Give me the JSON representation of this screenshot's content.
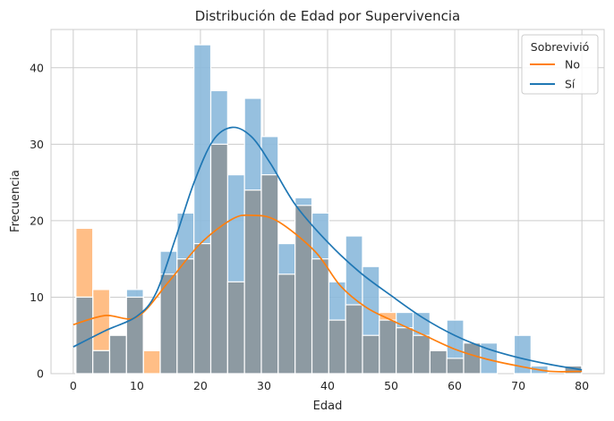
{
  "chart_data": {
    "type": "histogram",
    "title": "Distribución de Edad por Supervivencia",
    "xlabel": "Edad",
    "ylabel": "Frecuencia",
    "xlim": [
      -3.5,
      83.5
    ],
    "ylim": [
      0,
      45
    ],
    "xticks": [
      0,
      10,
      20,
      30,
      40,
      50,
      60,
      70,
      80
    ],
    "yticks": [
      0,
      10,
      20,
      30,
      40
    ],
    "grid": true,
    "legend": {
      "title": "Sobrevivió",
      "placement": "top-right"
    },
    "bin_edges": [
      0.42,
      3.07,
      5.72,
      8.37,
      11.02,
      13.68,
      16.33,
      18.98,
      21.63,
      24.28,
      26.93,
      29.58,
      32.23,
      34.89,
      37.54,
      40.19,
      42.84,
      45.49,
      48.14,
      50.79,
      53.45,
      56.1,
      58.75,
      61.4,
      64.05,
      66.7,
      69.35,
      72.0,
      74.66,
      77.31,
      79.96
    ],
    "series": [
      {
        "name": "No",
        "color": "#ff7f0e",
        "bar_color": "#ffbe86",
        "values": [
          19,
          11,
          5,
          10,
          3,
          13,
          15,
          17,
          30,
          12,
          24,
          26,
          13,
          22,
          15,
          7,
          9,
          5,
          8,
          6,
          5,
          3,
          2,
          4,
          0,
          0,
          0,
          0,
          0,
          1
        ],
        "kde_x": [
          0,
          5,
          10,
          15,
          20,
          25,
          28,
          32,
          38,
          42,
          46,
          50,
          55,
          60,
          65,
          70,
          75,
          80
        ],
        "kde_y": [
          6.4,
          7.6,
          7.4,
          12.0,
          17.0,
          20.2,
          20.7,
          20.0,
          16.0,
          11.5,
          8.7,
          7.0,
          5.1,
          3.2,
          1.9,
          1.0,
          0.3,
          0.3
        ]
      },
      {
        "name": "Sí",
        "color": "#1f77b4",
        "bar_color": "#8bb9dc",
        "values": [
          10,
          3,
          5,
          11,
          0,
          16,
          21,
          43,
          37,
          26,
          36,
          31,
          17,
          23,
          21,
          12,
          18,
          14,
          7,
          8,
          8,
          3,
          7,
          4,
          4,
          0,
          5,
          1,
          0,
          1
        ],
        "kde_x": [
          0,
          5,
          10,
          13,
          16,
          19,
          22,
          25,
          28,
          31,
          35,
          40,
          45,
          50,
          55,
          60,
          65,
          70,
          75,
          80
        ],
        "kde_y": [
          3.5,
          5.6,
          7.5,
          10.5,
          17.5,
          25.0,
          30.5,
          32.2,
          31.0,
          27.5,
          22.0,
          17.2,
          13.3,
          10.2,
          7.3,
          5.0,
          3.3,
          2.1,
          1.2,
          0.5
        ]
      }
    ]
  }
}
